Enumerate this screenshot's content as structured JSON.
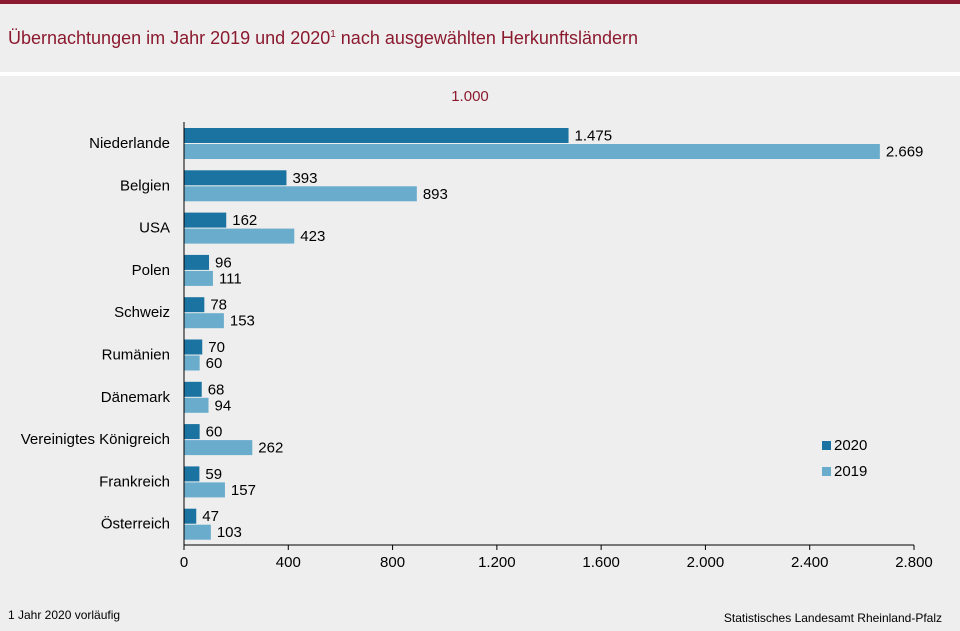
{
  "header": {
    "title": "Übernachtungen im Jahr 2019 und 2020",
    "title_footnote_mark": "1",
    "title_suffix": " nach ausgewählten Herkunftsländern"
  },
  "unit_label": "1.000",
  "footnote": "1 Jahr 2020 vorläufig",
  "source": "Statistisches Landesamt  Rheinland-Pfalz",
  "colors": {
    "brand": "#8b1a2f",
    "series_2020": "#1a73a0",
    "series_2019": "#6aaccc"
  },
  "chart_data": {
    "type": "bar",
    "orientation": "horizontal",
    "categories": [
      "Niederlande",
      "Belgien",
      "USA",
      "Polen",
      "Schweiz",
      "Rumänien",
      "Dänemark",
      "Vereinigtes Königreich",
      "Frankreich",
      "Österreich"
    ],
    "series": [
      {
        "name": "2020",
        "values": [
          1475,
          393,
          162,
          96,
          78,
          70,
          68,
          60,
          59,
          47
        ],
        "labels": [
          "1.475",
          "393",
          "162",
          "96",
          "78",
          "70",
          "68",
          "60",
          "59",
          "47"
        ]
      },
      {
        "name": "2019",
        "values": [
          2669,
          893,
          423,
          111,
          153,
          60,
          94,
          262,
          157,
          103
        ],
        "labels": [
          "2.669",
          "893",
          "423",
          "111",
          "153",
          "60",
          "94",
          "262",
          "157",
          "103"
        ]
      }
    ],
    "xlim": [
      0,
      2800
    ],
    "xticks": [
      0,
      400,
      800,
      1200,
      1600,
      2000,
      2400,
      2800
    ],
    "xtick_labels": [
      "0",
      "400",
      "800",
      "1.200",
      "1.600",
      "2.000",
      "2.400",
      "2.800"
    ],
    "grid": false,
    "legend_position": "right"
  }
}
